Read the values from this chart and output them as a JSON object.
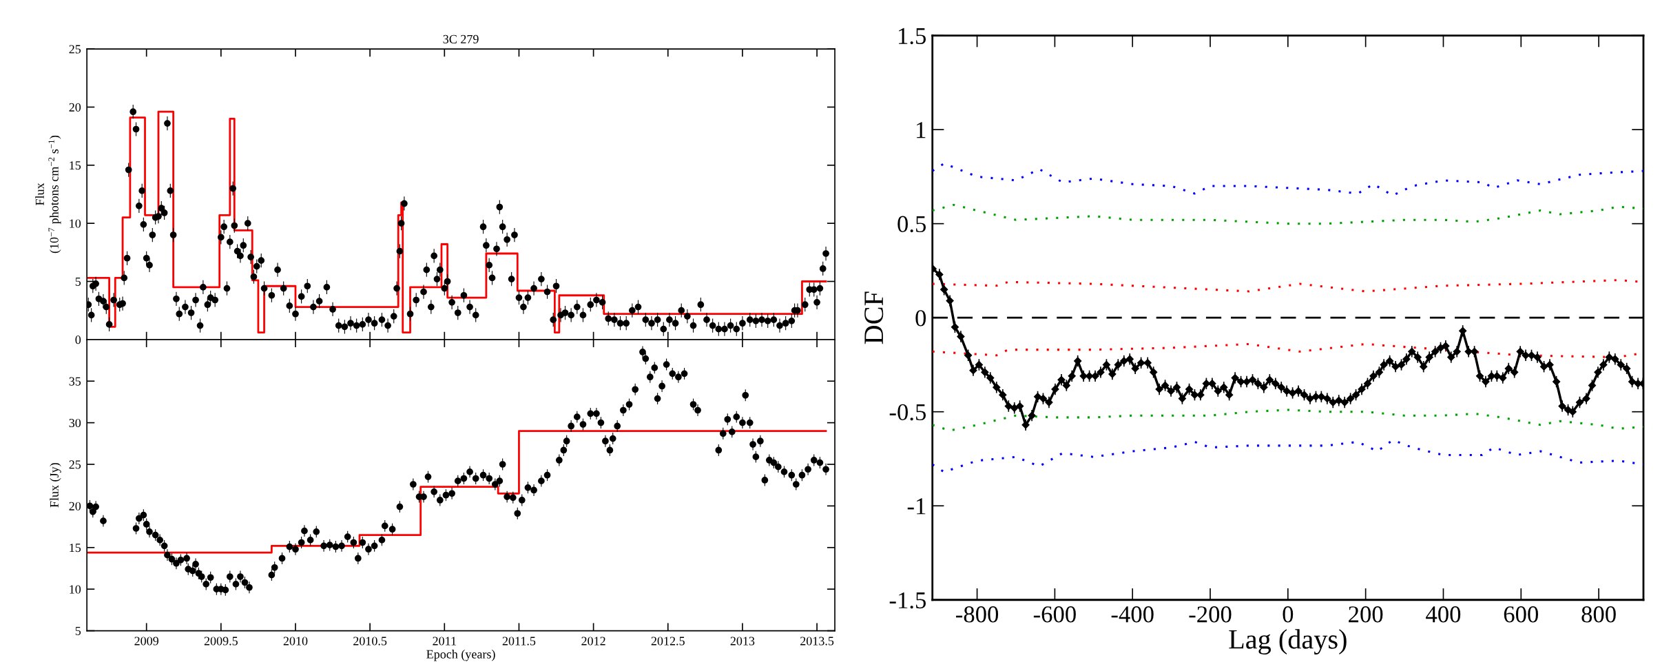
{
  "chart_data": [
    {
      "type": "scatter",
      "title": "3C 279",
      "ylabel": "Flux\n(10$^{−7}$ photons cm$^{−2}$ s$^{−1}$)",
      "xlim": [
        2008.6,
        2013.62
      ],
      "xticks": [
        2009,
        2009.5,
        2010,
        2010.5,
        2011,
        2011.5,
        2012,
        2012.5,
        2013,
        2013.5
      ],
      "ylim": [
        0,
        25
      ],
      "yticks": [
        0,
        5,
        10,
        15,
        20,
        25
      ],
      "tick_labels": "y",
      "grid": false,
      "legend": false,
      "series": [
        {
          "color": "#000000",
          "marker": "circle",
          "x": [
            2008.61,
            2008.63,
            2008.64,
            2008.66,
            2008.68,
            2008.71,
            2008.73,
            2008.75,
            2008.78,
            2008.82,
            2008.84,
            2008.85,
            2008.87,
            2008.88,
            2008.91,
            2008.93,
            2008.95,
            2008.97,
            2008.98,
            2009.0,
            2009.02,
            2009.04,
            2009.06,
            2009.08,
            2009.1,
            2009.12,
            2009.14,
            2009.16,
            2009.18,
            2009.2,
            2009.22,
            2009.26,
            2009.3,
            2009.33,
            2009.36,
            2009.38,
            2009.41,
            2009.43,
            2009.46,
            2009.5,
            2009.52,
            2009.54,
            2009.56,
            2009.58,
            2009.59,
            2009.61,
            2009.63,
            2009.65,
            2009.68,
            2009.7,
            2009.72,
            2009.74,
            2009.77,
            2009.79,
            2009.84,
            2009.88,
            2009.92,
            2009.96,
            2010.0,
            2010.04,
            2010.08,
            2010.12,
            2010.16,
            2010.21,
            2010.25,
            2010.29,
            2010.33,
            2010.37,
            2010.41,
            2010.45,
            2010.49,
            2010.53,
            2010.58,
            2010.62,
            2010.66,
            2010.68,
            2010.7,
            2010.71,
            2010.73,
            2010.77,
            2010.81,
            2010.86,
            2010.88,
            2010.91,
            2010.93,
            2010.95,
            2010.97,
            2011.0,
            2011.02,
            2011.05,
            2011.09,
            2011.13,
            2011.17,
            2011.21,
            2011.26,
            2011.28,
            2011.3,
            2011.32,
            2011.35,
            2011.37,
            2011.39,
            2011.42,
            2011.45,
            2011.47,
            2011.5,
            2011.53,
            2011.56,
            2011.6,
            2011.65,
            2011.69,
            2011.73,
            2011.75,
            2011.78,
            2011.81,
            2011.85,
            2011.89,
            2011.93,
            2011.98,
            2012.02,
            2012.06,
            2012.1,
            2012.14,
            2012.18,
            2012.22,
            2012.26,
            2012.3,
            2012.35,
            2012.39,
            2012.43,
            2012.47,
            2012.51,
            2012.55,
            2012.59,
            2012.63,
            2012.67,
            2012.72,
            2012.76,
            2012.8,
            2012.84,
            2012.88,
            2012.92,
            2012.96,
            2013.0,
            2013.05,
            2013.09,
            2013.13,
            2013.17,
            2013.21,
            2013.25,
            2013.29,
            2013.33,
            2013.35,
            2013.37,
            2013.42,
            2013.45,
            2013.48,
            2013.5,
            2013.52,
            2013.54,
            2013.56
          ],
          "values": [
            3.0,
            2.1,
            4.6,
            4.8,
            3.5,
            3.3,
            2.8,
            1.3,
            3.4,
            3.0,
            3.1,
            5.3,
            7.0,
            14.6,
            19.6,
            18.1,
            11.5,
            12.8,
            9.9,
            7.0,
            6.4,
            9.0,
            10.5,
            10.6,
            11.3,
            10.9,
            18.6,
            12.8,
            9.0,
            3.5,
            2.2,
            2.8,
            2.3,
            3.4,
            1.2,
            4.5,
            3.0,
            3.6,
            3.4,
            8.8,
            9.7,
            4.4,
            8.4,
            13.0,
            9.8,
            7.6,
            7.2,
            8.1,
            10.0,
            7.1,
            5.4,
            6.3,
            6.8,
            4.4,
            3.8,
            6.0,
            4.4,
            2.9,
            2.2,
            3.7,
            4.6,
            2.8,
            3.3,
            4.5,
            2.6,
            1.2,
            1.1,
            1.4,
            1.2,
            1.3,
            1.7,
            1.4,
            1.7,
            1.2,
            2.0,
            4.4,
            7.6,
            10.0,
            11.7,
            2.2,
            3.4,
            4.1,
            6.0,
            2.8,
            7.2,
            5.2,
            6.0,
            4.4,
            5.0,
            3.2,
            2.3,
            3.8,
            2.8,
            2.1,
            9.7,
            8.1,
            6.4,
            5.3,
            7.8,
            11.4,
            9.7,
            8.6,
            5.2,
            9.0,
            3.6,
            2.8,
            3.6,
            4.4,
            5.2,
            4.1,
            1.7,
            4.6,
            2.1,
            2.3,
            2.1,
            2.8,
            2.1,
            3.0,
            3.4,
            3.2,
            1.8,
            1.7,
            1.4,
            1.4,
            2.5,
            2.8,
            1.7,
            1.4,
            1.7,
            0.9,
            1.7,
            1.4,
            2.5,
            2.0,
            1.2,
            3.0,
            1.7,
            1.2,
            0.9,
            0.9,
            1.2,
            0.9,
            1.4,
            1.7,
            1.6,
            1.7,
            1.6,
            1.7,
            1.2,
            1.4,
            1.6,
            2.5,
            2.5,
            3.0,
            4.3,
            4.3,
            3.2,
            4.4,
            6.1,
            7.4
          ],
          "errors": [
            0.6,
            0.6,
            0.6,
            0.6,
            0.6,
            0.6,
            0.6,
            0.6,
            0.6,
            0.6,
            0.6,
            0.6,
            0.6,
            0.6,
            0.6,
            0.6,
            0.6,
            0.6,
            0.6,
            0.6,
            0.6,
            0.6,
            0.6,
            0.6,
            0.6,
            0.6,
            0.6,
            0.6,
            0.6,
            0.6,
            0.6,
            0.6,
            0.6,
            0.6,
            0.6,
            0.6,
            0.6,
            0.6,
            0.6,
            0.6,
            0.6,
            0.6,
            0.6,
            0.6,
            0.6,
            0.6,
            0.6,
            0.6,
            0.6,
            0.6,
            0.6,
            0.6,
            0.6,
            0.6,
            0.6,
            0.6,
            0.6,
            0.6,
            0.6,
            0.6,
            0.6,
            0.6,
            0.6,
            0.6,
            0.6,
            0.6,
            0.6,
            0.6,
            0.6,
            0.6,
            0.6,
            0.6,
            0.6,
            0.6,
            0.6,
            0.6,
            0.6,
            0.6,
            0.6,
            0.6,
            0.6,
            0.6,
            0.6,
            0.6,
            0.6,
            0.6,
            0.6,
            0.6,
            0.6,
            0.6,
            0.6,
            0.6,
            0.6,
            0.6,
            0.6,
            0.6,
            0.6,
            0.6,
            0.6,
            0.6,
            0.6,
            0.6,
            0.6,
            0.6,
            0.6,
            0.6,
            0.6,
            0.6,
            0.6,
            0.6,
            0.6,
            0.6,
            0.6,
            0.6,
            0.6,
            0.6,
            0.6,
            0.6,
            0.6,
            0.6,
            0.6,
            0.6,
            0.6,
            0.6,
            0.6,
            0.6,
            0.6,
            0.6,
            0.6,
            0.6,
            0.6,
            0.6,
            0.6,
            0.6,
            0.6,
            0.6,
            0.6,
            0.6,
            0.6,
            0.6,
            0.6,
            0.6,
            0.6,
            0.6,
            0.6,
            0.6,
            0.6,
            0.6,
            0.6,
            0.6,
            0.6,
            0.6,
            0.6,
            0.6,
            0.6,
            0.6,
            0.6,
            0.6,
            0.6,
            0.6
          ]
        },
        {
          "type": "step",
          "color": "#ff0000",
          "x": [
            2008.61,
            2008.75,
            2008.79,
            2008.84,
            2008.89,
            2008.99,
            2009.08,
            2009.18,
            2009.49,
            2009.56,
            2009.59,
            2009.71,
            2009.75,
            2009.79,
            2010.0,
            2010.69,
            2010.71,
            2010.72,
            2010.77,
            2010.98,
            2011.02,
            2011.28,
            2011.49,
            2011.74,
            2011.77,
            2012.07,
            2013.4,
            2013.56
          ],
          "values": [
            5.3,
            1.1,
            5.3,
            10.5,
            19.1,
            10.7,
            19.6,
            4.5,
            10.7,
            19.0,
            9.4,
            5.1,
            0.6,
            4.6,
            2.8,
            10.7,
            11.8,
            0.6,
            4.5,
            8.2,
            3.6,
            7.4,
            4.2,
            0.6,
            3.8,
            2.2,
            5.0,
            5.0
          ]
        }
      ]
    },
    {
      "type": "scatter",
      "xlabel": "Epoch (years)",
      "ylabel": "Flux (Jy)",
      "xlim": [
        2008.6,
        2013.62
      ],
      "xticks": [
        2009,
        2009.5,
        2010,
        2010.5,
        2011,
        2011.5,
        2012,
        2012.5,
        2013,
        2013.5
      ],
      "ylim": [
        5,
        40
      ],
      "yticks": [
        5,
        10,
        15,
        20,
        25,
        30,
        35
      ],
      "grid": false,
      "legend": false,
      "series": [
        {
          "color": "#000000",
          "marker": "circle",
          "x": [
            2008.62,
            2008.64,
            2008.66,
            2008.71,
            2008.93,
            2008.95,
            2008.98,
            2009.0,
            2009.02,
            2009.06,
            2009.09,
            2009.12,
            2009.14,
            2009.17,
            2009.2,
            2009.23,
            2009.27,
            2009.28,
            2009.31,
            2009.33,
            2009.35,
            2009.37,
            2009.4,
            2009.43,
            2009.47,
            2009.5,
            2009.53,
            2009.56,
            2009.6,
            2009.63,
            2009.66,
            2009.69,
            2009.84,
            2009.86,
            2009.91,
            2009.96,
            2010.0,
            2010.04,
            2010.06,
            2010.1,
            2010.14,
            2010.19,
            2010.23,
            2010.27,
            2010.31,
            2010.35,
            2010.39,
            2010.42,
            2010.45,
            2010.49,
            2010.53,
            2010.58,
            2010.6,
            2010.65,
            2010.7,
            2010.79,
            2010.83,
            2010.86,
            2010.89,
            2010.93,
            2010.97,
            2011.01,
            2011.05,
            2011.09,
            2011.13,
            2011.17,
            2011.21,
            2011.26,
            2011.3,
            2011.34,
            2011.37,
            2011.39,
            2011.42,
            2011.46,
            2011.49,
            2011.52,
            2011.56,
            2011.6,
            2011.65,
            2011.69,
            2011.77,
            2011.8,
            2011.82,
            2011.85,
            2011.89,
            2011.93,
            2011.98,
            2012.02,
            2012.05,
            2012.08,
            2012.11,
            2012.13,
            2012.16,
            2012.2,
            2012.24,
            2012.28,
            2012.33,
            2012.35,
            2012.38,
            2012.41,
            2012.43,
            2012.46,
            2012.49,
            2012.53,
            2012.57,
            2012.61,
            2012.67,
            2012.7,
            2012.84,
            2012.87,
            2012.9,
            2012.93,
            2012.96,
            2013.0,
            2013.02,
            2013.05,
            2013.07,
            2013.09,
            2013.12,
            2013.15,
            2013.18,
            2013.21,
            2013.24,
            2013.28,
            2013.33,
            2013.36,
            2013.4,
            2013.44,
            2013.48,
            2013.52,
            2013.56
          ],
          "values": [
            20.0,
            19.3,
            19.9,
            18.2,
            17.3,
            18.5,
            18.9,
            17.8,
            16.9,
            16.5,
            15.9,
            15.2,
            14.1,
            13.6,
            13.1,
            13.5,
            13.7,
            12.4,
            12.2,
            13.0,
            11.9,
            11.5,
            10.6,
            11.4,
            10.0,
            10.0,
            9.9,
            11.5,
            10.6,
            11.5,
            10.8,
            10.2,
            11.7,
            12.6,
            13.7,
            15.1,
            14.8,
            15.6,
            17.0,
            15.9,
            16.9,
            15.2,
            15.3,
            15.1,
            15.2,
            16.3,
            15.6,
            13.7,
            15.6,
            14.8,
            15.2,
            15.9,
            17.6,
            17.2,
            19.9,
            22.6,
            21.1,
            21.1,
            23.5,
            21.7,
            20.7,
            21.3,
            21.5,
            23.0,
            23.3,
            24.1,
            23.3,
            23.7,
            23.3,
            22.6,
            23.0,
            25.0,
            21.1,
            21.0,
            19.1,
            20.7,
            22.2,
            21.9,
            23.0,
            23.7,
            25.5,
            26.7,
            27.8,
            29.6,
            30.7,
            29.8,
            31.1,
            31.1,
            30.0,
            27.8,
            26.7,
            28.1,
            29.6,
            31.5,
            32.2,
            34.0,
            38.5,
            37.7,
            35.5,
            36.6,
            32.9,
            34.4,
            37.0,
            35.9,
            35.5,
            35.9,
            32.2,
            31.5,
            26.7,
            28.7,
            30.4,
            28.9,
            30.7,
            30.0,
            33.3,
            30.0,
            27.4,
            25.9,
            27.8,
            23.1,
            25.5,
            25.2,
            24.7,
            24.1,
            23.7,
            22.6,
            23.7,
            24.4,
            25.5,
            25.2,
            24.4
          ],
          "errors": [
            0.7,
            0.7,
            0.7,
            0.7,
            0.7,
            0.7,
            0.7,
            0.7,
            0.7,
            0.7,
            0.7,
            0.7,
            0.7,
            0.7,
            0.7,
            0.7,
            0.7,
            0.7,
            0.7,
            0.7,
            0.7,
            0.7,
            0.7,
            0.7,
            0.7,
            0.7,
            0.7,
            0.7,
            0.7,
            0.7,
            0.7,
            0.7,
            0.7,
            0.7,
            0.7,
            0.7,
            0.7,
            0.7,
            0.7,
            0.7,
            0.7,
            0.7,
            0.7,
            0.7,
            0.7,
            0.7,
            0.7,
            0.7,
            0.7,
            0.7,
            0.7,
            0.7,
            0.7,
            0.7,
            0.7,
            0.7,
            0.7,
            0.7,
            0.7,
            0.7,
            0.7,
            0.7,
            0.7,
            0.7,
            0.7,
            0.7,
            0.7,
            0.7,
            0.7,
            0.7,
            0.7,
            0.7,
            0.7,
            0.7,
            0.7,
            0.7,
            0.7,
            0.7,
            0.7,
            0.7,
            0.7,
            0.7,
            0.7,
            0.7,
            0.7,
            0.7,
            0.7,
            0.7,
            0.7,
            0.7,
            0.7,
            0.7,
            0.7,
            0.7,
            0.7,
            0.7,
            0.7,
            0.7,
            0.7,
            0.7,
            0.7,
            0.7,
            0.7,
            0.7,
            0.7,
            0.7,
            0.7,
            0.7,
            0.7,
            0.7,
            0.7,
            0.7,
            0.7,
            0.7,
            0.7,
            0.7,
            0.7,
            0.7,
            0.7,
            0.7,
            0.7,
            0.7,
            0.7,
            0.7,
            0.7,
            0.7,
            0.7,
            0.7,
            0.7,
            0.7,
            0.7
          ]
        },
        {
          "type": "step",
          "color": "#ff0000",
          "x": [
            2008.61,
            2009.84,
            2010.43,
            2010.84,
            2011.36,
            2011.5,
            2013.56
          ],
          "values": [
            14.4,
            15.2,
            16.5,
            22.3,
            21.5,
            29.0,
            29.0
          ]
        }
      ]
    },
    {
      "type": "line",
      "xlabel": "Lag (days)",
      "ylabel": "DCF",
      "xlim": [
        -915,
        915
      ],
      "xticks": [
        -800,
        -600,
        -400,
        -200,
        0,
        200,
        400,
        600,
        800
      ],
      "ylim": [
        -1.5,
        1.5
      ],
      "yticks": [
        -1.5,
        -1,
        -0.5,
        0,
        0.5,
        1,
        1.5
      ],
      "grid": false,
      "legend": false,
      "ref_lines": [
        {
          "axis": "y",
          "value": 0,
          "color": "#000000",
          "line_style": "dashed"
        }
      ],
      "series": [
        {
          "type": "line",
          "color": "#0000ff",
          "line_style": "dotted",
          "x": [
            -915,
            -885,
            -800,
            -700,
            -640,
            -580,
            -500,
            -400,
            -300,
            -240,
            -200,
            -100,
            0,
            100,
            180,
            220,
            270,
            320,
            400,
            500,
            530,
            590,
            650,
            750,
            820,
            915
          ],
          "values": [
            0.78,
            0.82,
            0.75,
            0.73,
            0.79,
            0.72,
            0.74,
            0.71,
            0.7,
            0.66,
            0.7,
            0.7,
            0.69,
            0.68,
            0.66,
            0.71,
            0.65,
            0.7,
            0.73,
            0.72,
            0.69,
            0.73,
            0.71,
            0.76,
            0.77,
            0.78
          ]
        },
        {
          "type": "line",
          "color": "#00a000",
          "line_style": "dotted",
          "x": [
            -915,
            -860,
            -800,
            -700,
            -600,
            -500,
            -400,
            -300,
            -200,
            -100,
            0,
            100,
            200,
            300,
            400,
            480,
            550,
            650,
            700,
            800,
            850,
            915
          ],
          "values": [
            0.57,
            0.6,
            0.57,
            0.52,
            0.53,
            0.54,
            0.52,
            0.52,
            0.52,
            0.51,
            0.5,
            0.5,
            0.51,
            0.52,
            0.52,
            0.51,
            0.53,
            0.57,
            0.55,
            0.57,
            0.59,
            0.58
          ]
        },
        {
          "type": "line",
          "color": "#ff0000",
          "line_style": "dotted",
          "x": [
            -915,
            -750,
            -720,
            -500,
            -300,
            -100,
            30,
            200,
            400,
            600,
            850,
            915
          ],
          "values": [
            0.18,
            0.17,
            0.19,
            0.18,
            0.16,
            0.14,
            0.18,
            0.14,
            0.17,
            0.18,
            0.2,
            0.19
          ]
        },
        {
          "type": "line",
          "color": "#ff0000",
          "line_style": "dotted",
          "x": [
            -915,
            -750,
            -720,
            -500,
            -300,
            -100,
            30,
            200,
            400,
            600,
            850,
            905
          ],
          "values": [
            -0.18,
            -0.2,
            -0.17,
            -0.17,
            -0.16,
            -0.14,
            -0.18,
            -0.14,
            -0.17,
            -0.2,
            -0.21,
            -0.19
          ]
        },
        {
          "type": "line",
          "color": "#00a000",
          "line_style": "dotted",
          "x": [
            -915,
            -870,
            -800,
            -700,
            -600,
            -500,
            -400,
            -300,
            -200,
            -100,
            0,
            100,
            200,
            300,
            400,
            480,
            550,
            650,
            700,
            800,
            850,
            915
          ],
          "values": [
            -0.57,
            -0.6,
            -0.57,
            -0.52,
            -0.53,
            -0.53,
            -0.52,
            -0.52,
            -0.52,
            -0.5,
            -0.49,
            -0.5,
            -0.5,
            -0.52,
            -0.52,
            -0.51,
            -0.53,
            -0.57,
            -0.55,
            -0.57,
            -0.59,
            -0.58
          ]
        },
        {
          "type": "line",
          "color": "#0000ff",
          "line_style": "dotted",
          "x": [
            -915,
            -885,
            -800,
            -700,
            -640,
            -580,
            -500,
            -400,
            -300,
            -240,
            -200,
            -100,
            0,
            100,
            180,
            230,
            270,
            320,
            400,
            500,
            530,
            590,
            650,
            750,
            850,
            915
          ],
          "values": [
            -0.78,
            -0.82,
            -0.76,
            -0.74,
            -0.79,
            -0.72,
            -0.74,
            -0.71,
            -0.69,
            -0.66,
            -0.69,
            -0.68,
            -0.68,
            -0.68,
            -0.66,
            -0.71,
            -0.65,
            -0.69,
            -0.73,
            -0.73,
            -0.69,
            -0.73,
            -0.71,
            -0.77,
            -0.76,
            -0.78
          ]
        },
        {
          "color": "#000000",
          "line_style": "solid",
          "marker": "diamond",
          "x": [
            -914,
            -897,
            -885,
            -870,
            -857,
            -842,
            -823,
            -810,
            -795,
            -780,
            -766,
            -750,
            -734,
            -719,
            -704,
            -690,
            -675,
            -659,
            -644,
            -630,
            -615,
            -599,
            -583,
            -570,
            -556,
            -541,
            -526,
            -511,
            -496,
            -482,
            -467,
            -452,
            -437,
            -422,
            -407,
            -393,
            -378,
            -361,
            -346,
            -331,
            -316,
            -301,
            -286,
            -272,
            -254,
            -240,
            -225,
            -210,
            -195,
            -180,
            -165,
            -151,
            -136,
            -121,
            -106,
            -91,
            -77,
            -62,
            -47,
            -32,
            -17,
            -3,
            12,
            27,
            42,
            57,
            72,
            86,
            101,
            116,
            131,
            146,
            161,
            175,
            190,
            205,
            220,
            235,
            247,
            262,
            277,
            292,
            305,
            319,
            334,
            349,
            364,
            379,
            393,
            406,
            420,
            435,
            450,
            465,
            480,
            494,
            509,
            524,
            538,
            553,
            568,
            583,
            598,
            612,
            627,
            642,
            659,
            674,
            691,
            706,
            721,
            733,
            751,
            768,
            783,
            798,
            812,
            827,
            842,
            857,
            872,
            886,
            901,
            914
          ],
          "values": [
            0.26,
            0.23,
            0.15,
            0.09,
            -0.05,
            -0.1,
            -0.2,
            -0.28,
            -0.25,
            -0.29,
            -0.32,
            -0.37,
            -0.41,
            -0.47,
            -0.48,
            -0.47,
            -0.57,
            -0.52,
            -0.42,
            -0.43,
            -0.45,
            -0.38,
            -0.33,
            -0.36,
            -0.31,
            -0.23,
            -0.31,
            -0.31,
            -0.31,
            -0.29,
            -0.25,
            -0.3,
            -0.25,
            -0.23,
            -0.22,
            -0.27,
            -0.24,
            -0.24,
            -0.29,
            -0.38,
            -0.36,
            -0.39,
            -0.37,
            -0.43,
            -0.38,
            -0.41,
            -0.41,
            -0.35,
            -0.35,
            -0.39,
            -0.37,
            -0.41,
            -0.32,
            -0.34,
            -0.34,
            -0.33,
            -0.35,
            -0.37,
            -0.33,
            -0.35,
            -0.37,
            -0.39,
            -0.4,
            -0.39,
            -0.41,
            -0.43,
            -0.42,
            -0.42,
            -0.43,
            -0.45,
            -0.44,
            -0.45,
            -0.43,
            -0.41,
            -0.38,
            -0.35,
            -0.31,
            -0.29,
            -0.25,
            -0.23,
            -0.26,
            -0.25,
            -0.22,
            -0.18,
            -0.21,
            -0.26,
            -0.21,
            -0.18,
            -0.16,
            -0.15,
            -0.21,
            -0.18,
            -0.07,
            -0.18,
            -0.18,
            -0.31,
            -0.34,
            -0.31,
            -0.31,
            -0.32,
            -0.27,
            -0.29,
            -0.18,
            -0.2,
            -0.2,
            -0.21,
            -0.26,
            -0.25,
            -0.34,
            -0.47,
            -0.49,
            -0.5,
            -0.45,
            -0.43,
            -0.36,
            -0.29,
            -0.25,
            -0.21,
            -0.22,
            -0.25,
            -0.27,
            -0.34,
            -0.35,
            -0.35
          ],
          "errors": [
            0.03,
            0.03,
            0.03,
            0.03,
            0.03,
            0.03,
            0.03,
            0.03,
            0.03,
            0.03,
            0.03,
            0.03,
            0.03,
            0.03,
            0.03,
            0.03,
            0.03,
            0.03,
            0.03,
            0.03,
            0.03,
            0.03,
            0.03,
            0.03,
            0.03,
            0.03,
            0.03,
            0.03,
            0.03,
            0.03,
            0.03,
            0.03,
            0.03,
            0.03,
            0.03,
            0.03,
            0.03,
            0.03,
            0.03,
            0.03,
            0.03,
            0.03,
            0.03,
            0.03,
            0.03,
            0.03,
            0.03,
            0.03,
            0.03,
            0.03,
            0.03,
            0.03,
            0.03,
            0.03,
            0.03,
            0.03,
            0.03,
            0.03,
            0.03,
            0.03,
            0.03,
            0.03,
            0.03,
            0.03,
            0.03,
            0.03,
            0.03,
            0.03,
            0.03,
            0.03,
            0.03,
            0.03,
            0.03,
            0.03,
            0.03,
            0.03,
            0.03,
            0.03,
            0.03,
            0.03,
            0.03,
            0.03,
            0.03,
            0.03,
            0.03,
            0.03,
            0.03,
            0.03,
            0.03,
            0.03,
            0.03,
            0.03,
            0.03,
            0.03,
            0.03,
            0.03,
            0.03,
            0.03,
            0.03,
            0.03,
            0.03,
            0.03,
            0.03,
            0.03,
            0.03,
            0.03,
            0.03,
            0.03,
            0.03,
            0.03,
            0.03,
            0.03,
            0.03,
            0.03,
            0.03,
            0.03,
            0.03,
            0.03,
            0.03,
            0.03,
            0.03,
            0.03,
            0.03,
            0.03
          ]
        }
      ]
    }
  ]
}
